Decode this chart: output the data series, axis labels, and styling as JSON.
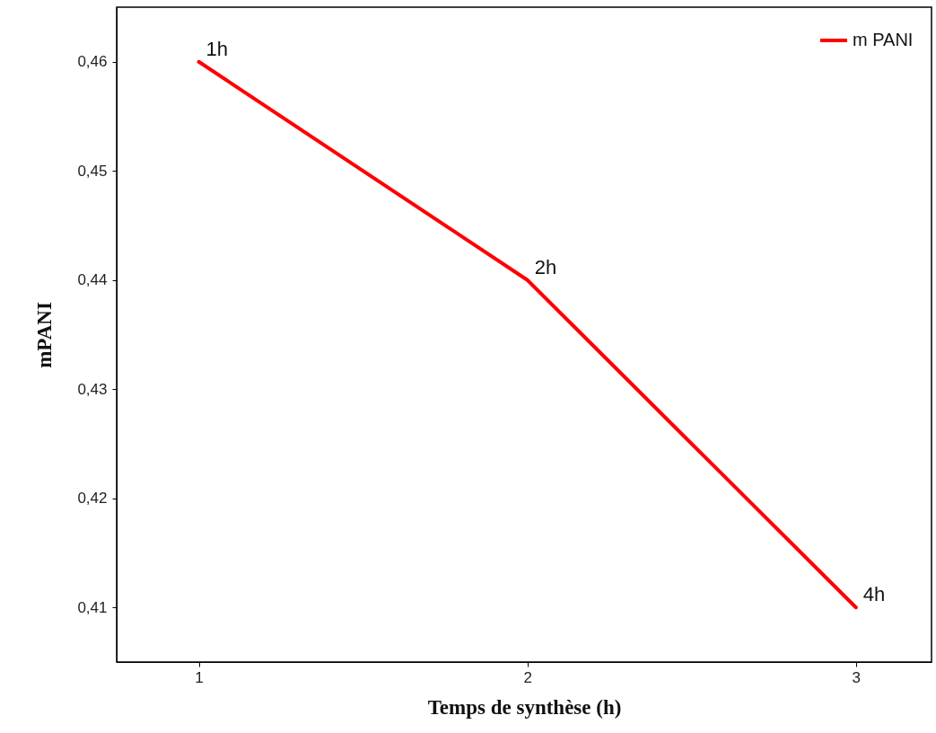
{
  "chart_data": {
    "type": "line",
    "xlabel": "Temps de synthèse (h)",
    "ylabel": "mPANI",
    "x": [
      1,
      2,
      3
    ],
    "series": [
      {
        "name": "m PANI",
        "color": "#ff0000",
        "values": [
          0.46,
          0.44,
          0.41
        ]
      }
    ],
    "xlim": [
      0.75,
      3.23
    ],
    "ylim": [
      0.405,
      0.465
    ],
    "xticks": [
      1,
      2,
      3
    ],
    "yticks": [
      {
        "value": 0.41,
        "label": "0,41"
      },
      {
        "value": 0.42,
        "label": "0,42"
      },
      {
        "value": 0.43,
        "label": "0,43"
      },
      {
        "value": 0.44,
        "label": "0,44"
      },
      {
        "value": 0.45,
        "label": "0,45"
      },
      {
        "value": 0.46,
        "label": "0,46"
      }
    ],
    "annotations": [
      {
        "text": "1h",
        "x": 1,
        "y": 0.46
      },
      {
        "text": "2h",
        "x": 2,
        "y": 0.44
      },
      {
        "text": "4h",
        "x": 3,
        "y": 0.41
      }
    ],
    "grid": false,
    "legend": "top right",
    "marker": "none",
    "line_style": "solid"
  }
}
